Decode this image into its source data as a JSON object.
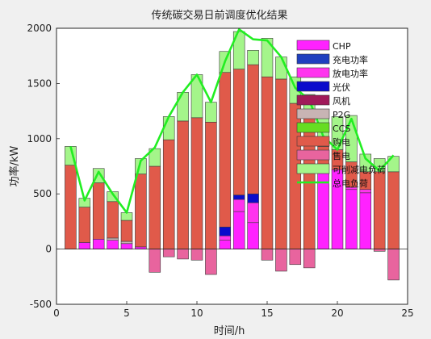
{
  "chart_data": {
    "type": "bar",
    "title": "传统碳交易日前调度优化结果",
    "xlabel": "时间/h",
    "ylabel": "功率/kW",
    "xlim": [
      0,
      25
    ],
    "ylim": [
      -500,
      2000
    ],
    "xticks": [
      0,
      5,
      10,
      15,
      20,
      25
    ],
    "yticks": [
      -500,
      0,
      500,
      1000,
      1500,
      2000
    ],
    "grid": false,
    "legend_position": "top-right inside",
    "x": [
      1,
      2,
      3,
      4,
      5,
      6,
      7,
      8,
      9,
      10,
      11,
      12,
      13,
      14,
      15,
      16,
      17,
      18,
      19,
      20,
      21,
      22,
      23,
      24
    ],
    "series": [
      {
        "name": "CHP",
        "color": "#ff22ff",
        "values": [
          0,
          60,
          90,
          80,
          50,
          20,
          0,
          0,
          0,
          0,
          0,
          80,
          340,
          240,
          0,
          0,
          0,
          0,
          700,
          720,
          540,
          510,
          0,
          0
        ]
      },
      {
        "name": "充电功率",
        "color": "#1f3fbf",
        "values": [
          0,
          0,
          0,
          0,
          0,
          0,
          0,
          0,
          0,
          0,
          0,
          0,
          0,
          0,
          0,
          0,
          0,
          0,
          0,
          0,
          0,
          0,
          0,
          0
        ]
      },
      {
        "name": "放电功率",
        "color": "#ff33ee",
        "values": [
          0,
          0,
          0,
          0,
          0,
          0,
          0,
          0,
          0,
          0,
          0,
          40,
          110,
          180,
          0,
          0,
          0,
          0,
          0,
          0,
          20,
          30,
          0,
          0
        ]
      },
      {
        "name": "光伏",
        "color": "#0a0acc",
        "values": [
          0,
          0,
          0,
          0,
          0,
          0,
          0,
          0,
          0,
          0,
          0,
          80,
          40,
          80,
          0,
          0,
          0,
          0,
          0,
          0,
          0,
          0,
          0,
          0
        ]
      },
      {
        "name": "风机",
        "color": "#a01a5a",
        "values": [
          0,
          0,
          0,
          0,
          0,
          0,
          0,
          0,
          0,
          0,
          0,
          0,
          0,
          0,
          0,
          0,
          0,
          0,
          0,
          0,
          0,
          0,
          0,
          0
        ]
      },
      {
        "name": "P2G",
        "color": "#c8b4b4",
        "values": [
          0,
          0,
          0,
          20,
          20,
          0,
          0,
          0,
          0,
          0,
          0,
          0,
          0,
          0,
          0,
          0,
          0,
          0,
          0,
          0,
          0,
          0,
          0,
          0
        ]
      },
      {
        "name": "CCS",
        "color": "#66dd22",
        "values": [
          0,
          0,
          0,
          0,
          0,
          0,
          0,
          0,
          0,
          0,
          0,
          0,
          0,
          0,
          0,
          0,
          0,
          0,
          0,
          0,
          0,
          0,
          0,
          0
        ]
      },
      {
        "name": "购电",
        "color": "#e05a4a",
        "values": [
          760,
          320,
          510,
          330,
          190,
          660,
          750,
          990,
          1160,
          1190,
          1150,
          1400,
          1140,
          1170,
          1560,
          1540,
          1320,
          1190,
          230,
          180,
          230,
          160,
          700,
          700
        ]
      },
      {
        "name": "售电",
        "color": "#e8649e",
        "values": [
          0,
          0,
          0,
          0,
          0,
          0,
          -210,
          -70,
          -90,
          -100,
          -230,
          0,
          0,
          0,
          -100,
          -200,
          -140,
          -170,
          0,
          0,
          0,
          0,
          -20,
          -280
        ]
      },
      {
        "name": "可削减电负荷",
        "color": "#a4f58a",
        "values": [
          170,
          80,
          130,
          90,
          70,
          140,
          160,
          210,
          260,
          390,
          180,
          190,
          340,
          130,
          350,
          200,
          240,
          210,
          310,
          300,
          420,
          160,
          120,
          140
        ]
      },
      {
        "name": "总电负荷",
        "color": "#22ee22",
        "line": true,
        "values": [
          930,
          440,
          700,
          500,
          330,
          800,
          920,
          1200,
          1420,
          1580,
          1330,
          1700,
          1990,
          1900,
          1890,
          1740,
          1460,
          1350,
          1020,
          900,
          1180,
          820,
          710,
          850
        ]
      }
    ]
  }
}
